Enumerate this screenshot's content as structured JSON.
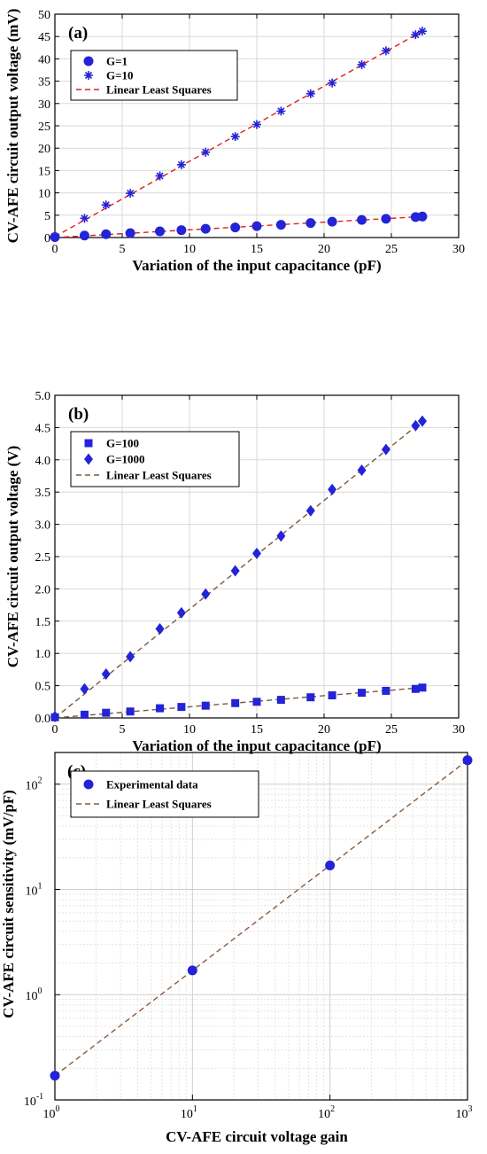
{
  "chart_data": [
    {
      "type": "scatter",
      "panel_label": "(a)",
      "xlabel": "Variation of the input capacitance (pF)",
      "ylabel": "CV-AFE circuit output voltage  (mV)",
      "xlim": [
        0,
        30
      ],
      "ylim": [
        0,
        50
      ],
      "xticks": [
        0,
        5,
        10,
        15,
        20,
        25,
        30
      ],
      "yticks": [
        0,
        5,
        10,
        15,
        20,
        25,
        30,
        35,
        40,
        45,
        50
      ],
      "grid": true,
      "legend_position": "top-left",
      "series": [
        {
          "name": "G=1",
          "marker": "circle",
          "color": "#2323d8",
          "x": [
            0,
            2.2,
            3.8,
            5.6,
            7.8,
            9.4,
            11.2,
            13.4,
            15.0,
            16.8,
            19.0,
            20.6,
            22.8,
            24.6,
            26.8,
            27.3
          ],
          "y": [
            0.1,
            0.45,
            0.75,
            1.0,
            1.4,
            1.65,
            1.95,
            2.25,
            2.55,
            2.85,
            3.25,
            3.55,
            3.95,
            4.2,
            4.6,
            4.7
          ]
        },
        {
          "name": "G=10",
          "marker": "asterisk",
          "color": "#2323d8",
          "x": [
            0,
            2.2,
            3.8,
            5.6,
            7.8,
            9.4,
            11.2,
            13.4,
            15.0,
            16.8,
            19.0,
            20.6,
            22.8,
            24.6,
            26.8,
            27.3
          ],
          "y": [
            0.2,
            4.3,
            7.3,
            9.9,
            13.8,
            16.3,
            19.1,
            22.6,
            25.3,
            28.3,
            32.2,
            34.6,
            38.7,
            41.8,
            45.4,
            46.2
          ]
        },
        {
          "name": "Linear Least Squares",
          "marker": "dashed-line",
          "color": "#e02020",
          "fits": [
            {
              "x": [
                0,
                27.3
              ],
              "y": [
                0,
                4.7
              ]
            },
            {
              "x": [
                0,
                27.3
              ],
              "y": [
                0.2,
                46.2
              ]
            }
          ]
        }
      ]
    },
    {
      "type": "scatter",
      "panel_label": "(b)",
      "xlabel": "Variation of the input capacitance (pF)",
      "ylabel": "CV-AFE circuit output voltage  (V)",
      "xlim": [
        0,
        30
      ],
      "ylim": [
        0,
        5
      ],
      "xticks": [
        0,
        5,
        10,
        15,
        20,
        25,
        30
      ],
      "yticks": [
        "0.0",
        "0.5",
        "1.0",
        "1.5",
        "2.0",
        "2.5",
        "3.0",
        "3.5",
        "4.0",
        "4.5",
        "5.0"
      ],
      "grid": true,
      "legend_position": "top-left",
      "series": [
        {
          "name": "G=100",
          "marker": "square",
          "color": "#2323d8",
          "x": [
            0,
            2.2,
            3.8,
            5.6,
            7.8,
            9.4,
            11.2,
            13.4,
            15.0,
            16.8,
            19.0,
            20.6,
            22.8,
            24.6,
            26.8,
            27.3
          ],
          "y": [
            0.01,
            0.05,
            0.08,
            0.1,
            0.15,
            0.17,
            0.19,
            0.23,
            0.25,
            0.28,
            0.32,
            0.35,
            0.39,
            0.42,
            0.45,
            0.47
          ]
        },
        {
          "name": "G=1000",
          "marker": "diamond",
          "color": "#2323d8",
          "x": [
            0,
            2.2,
            3.8,
            5.6,
            7.8,
            9.4,
            11.2,
            13.4,
            15.0,
            16.8,
            19.0,
            20.6,
            22.8,
            24.6,
            26.8,
            27.3
          ],
          "y": [
            0.02,
            0.45,
            0.68,
            0.95,
            1.38,
            1.63,
            1.92,
            2.28,
            2.55,
            2.82,
            3.21,
            3.54,
            3.84,
            4.16,
            4.53,
            4.6
          ]
        },
        {
          "name": "Linear Least Squares",
          "marker": "dashed-line",
          "color": "#e02020",
          "fits": [
            {
              "x": [
                0,
                27.3
              ],
              "y": [
                0.0,
                0.47
              ],
              "color": "#7a5a3a"
            },
            {
              "x": [
                0,
                27.3
              ],
              "y": [
                0.0,
                4.6
              ],
              "color": "#7a5a3a"
            }
          ]
        }
      ]
    },
    {
      "type": "scatter",
      "panel_label": "(c)",
      "xlabel": "CV-AFE circuit voltage gain",
      "ylabel": "CV-AFE circuit sensitivity (mV/pF)",
      "xscale": "log",
      "yscale": "log",
      "xlim": [
        1,
        1000
      ],
      "ylim": [
        0.1,
        200
      ],
      "xticks_exp": [
        0,
        1,
        2,
        3
      ],
      "yticks_exp": [
        -1,
        0,
        1,
        2
      ],
      "grid": true,
      "legend_position": "top-left",
      "series": [
        {
          "name": "Experimental data",
          "marker": "circle",
          "color": "#2323d8",
          "x": [
            1,
            10,
            100,
            1000
          ],
          "y": [
            0.17,
            1.7,
            16.9,
            169
          ]
        },
        {
          "name": "Linear Least Squares",
          "marker": "dashed-line",
          "color": "#8b5a3c",
          "fits": [
            {
              "x": [
                1,
                1000
              ],
              "y": [
                0.17,
                169
              ]
            }
          ]
        }
      ]
    }
  ]
}
